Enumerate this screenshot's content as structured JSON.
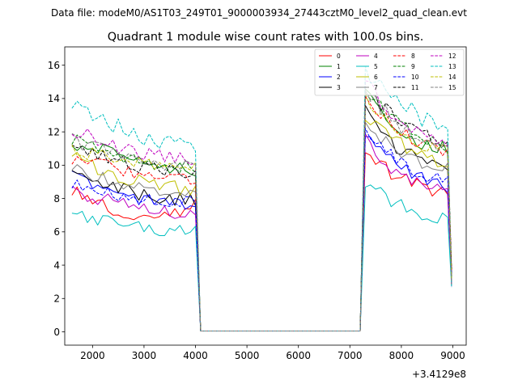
{
  "suptitle": "Data file: modeM0/AS1T03_249T01_9000003934_27443cztM0_level2_quad_clean.evt",
  "chart_data": {
    "type": "line",
    "title": "Quadrant 1 module wise count rates with 100.0s bins.",
    "xlabel": "",
    "ylabel": "",
    "x_offset_label": "+3.4129e8",
    "xlim": [
      1460,
      9260
    ],
    "ylim": [
      -0.8,
      17.1
    ],
    "xticks": [
      2000,
      3000,
      4000,
      5000,
      6000,
      7000,
      8000,
      9000
    ],
    "yticks": [
      0,
      2,
      4,
      6,
      8,
      10,
      12,
      14,
      16
    ],
    "legend_position": "top-right",
    "gap": {
      "start": 4100,
      "end": 7200,
      "value": 0.05
    },
    "segment1": {
      "start": 1600,
      "end": 4000,
      "n": 25
    },
    "segment2": {
      "start": 7300,
      "end": 8900,
      "n": 17
    },
    "series": [
      {
        "name": "0",
        "color": "#ff0000",
        "dash": false,
        "seg1": [
          8.6,
          7.3,
          6.7,
          7.6
        ],
        "seg2": [
          11.0,
          9.4,
          8.8,
          8.2
        ]
      },
      {
        "name": "1",
        "color": "#008000",
        "dash": false,
        "seg1": [
          11.3,
          10.8,
          10.0,
          9.8
        ],
        "seg2": [
          14.3,
          12.6,
          11.3,
          11.1
        ]
      },
      {
        "name": "2",
        "color": "#0000ff",
        "dash": false,
        "seg1": [
          9.4,
          8.4,
          7.8,
          7.5
        ],
        "seg2": [
          11.8,
          10.2,
          9.2,
          8.7
        ]
      },
      {
        "name": "3",
        "color": "#000000",
        "dash": false,
        "seg1": [
          9.5,
          8.7,
          8.0,
          7.9
        ],
        "seg2": [
          13.2,
          11.2,
          10.4,
          9.9
        ]
      },
      {
        "name": "4",
        "color": "#bf00bf",
        "dash": false,
        "seg1": [
          8.4,
          7.8,
          7.3,
          7.0
        ],
        "seg2": [
          11.5,
          9.7,
          8.8,
          8.5
        ]
      },
      {
        "name": "5",
        "color": "#00bfbf",
        "dash": false,
        "seg1": [
          7.1,
          6.5,
          6.1,
          6.0
        ],
        "seg2": [
          9.0,
          7.8,
          7.1,
          6.8
        ]
      },
      {
        "name": "6",
        "color": "#bfbf00",
        "dash": false,
        "seg1": [
          10.5,
          9.4,
          8.8,
          8.5
        ],
        "seg2": [
          13.0,
          11.6,
          10.6,
          10.1
        ]
      },
      {
        "name": "7",
        "color": "#808080",
        "dash": false,
        "seg1": [
          9.8,
          9.0,
          8.5,
          8.3
        ],
        "seg2": [
          12.5,
          11.0,
          10.1,
          9.8
        ]
      },
      {
        "name": "8",
        "color": "#ff0000",
        "dash": true,
        "seg1": [
          10.3,
          9.9,
          9.3,
          9.0
        ],
        "seg2": [
          14.0,
          12.4,
          11.2,
          10.9
        ]
      },
      {
        "name": "9",
        "color": "#008000",
        "dash": true,
        "seg1": [
          11.5,
          10.7,
          10.1,
          9.8
        ],
        "seg2": [
          14.6,
          12.7,
          11.6,
          11.2
        ]
      },
      {
        "name": "10",
        "color": "#0000ff",
        "dash": true,
        "seg1": [
          9.0,
          8.3,
          7.9,
          7.7
        ],
        "seg2": [
          12.2,
          10.6,
          9.5,
          9.1
        ]
      },
      {
        "name": "11",
        "color": "#000000",
        "dash": true,
        "seg1": [
          11.0,
          10.3,
          9.8,
          9.6
        ],
        "seg2": [
          14.7,
          12.9,
          11.8,
          11.3
        ]
      },
      {
        "name": "12",
        "color": "#bf00bf",
        "dash": true,
        "seg1": [
          12.0,
          11.2,
          10.5,
          10.3
        ],
        "seg2": [
          15.0,
          13.0,
          12.0,
          11.5
        ]
      },
      {
        "name": "13",
        "color": "#00bfbf",
        "dash": true,
        "seg1": [
          13.5,
          12.4,
          11.5,
          11.3
        ],
        "seg2": [
          15.7,
          14.2,
          12.8,
          12.3
        ]
      },
      {
        "name": "14",
        "color": "#bfbf00",
        "dash": true,
        "seg1": [
          11.0,
          10.4,
          10.0,
          9.8
        ],
        "seg2": [
          14.1,
          12.4,
          11.3,
          10.8
        ]
      },
      {
        "name": "15",
        "color": "#808080",
        "dash": true,
        "seg1": [
          11.5,
          10.8,
          10.2,
          10.0
        ],
        "seg2": [
          14.5,
          12.7,
          11.5,
          11.1
        ]
      }
    ]
  }
}
